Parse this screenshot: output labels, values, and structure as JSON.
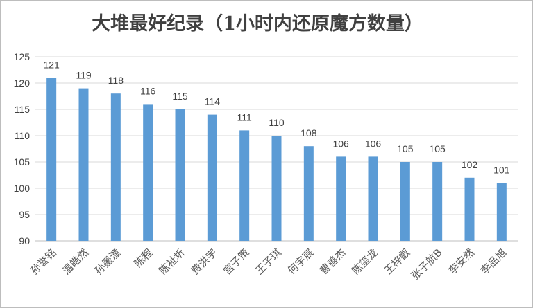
{
  "chart_data": {
    "type": "bar",
    "title": "大堆最好纪录（1小时内还原魔方数量）",
    "categories": [
      "孙誉铭",
      "温皓然",
      "孙墨潼",
      "陈程",
      "陈祉圻",
      "费洪宇",
      "宫子策",
      "王子琪",
      "何宇宸",
      "曹善杰",
      "陈玺龙",
      "王梓叡",
      "张子航B",
      "李安然",
      "李品旭"
    ],
    "values": [
      121,
      119,
      118,
      116,
      115,
      114,
      111,
      110,
      108,
      106,
      106,
      105,
      105,
      102,
      101
    ],
    "ylim": [
      90,
      125
    ],
    "yticks": [
      90,
      95,
      100,
      105,
      110,
      115,
      120,
      125
    ],
    "grid": true,
    "legend": "none",
    "bar_color": "#5b9bd5"
  }
}
